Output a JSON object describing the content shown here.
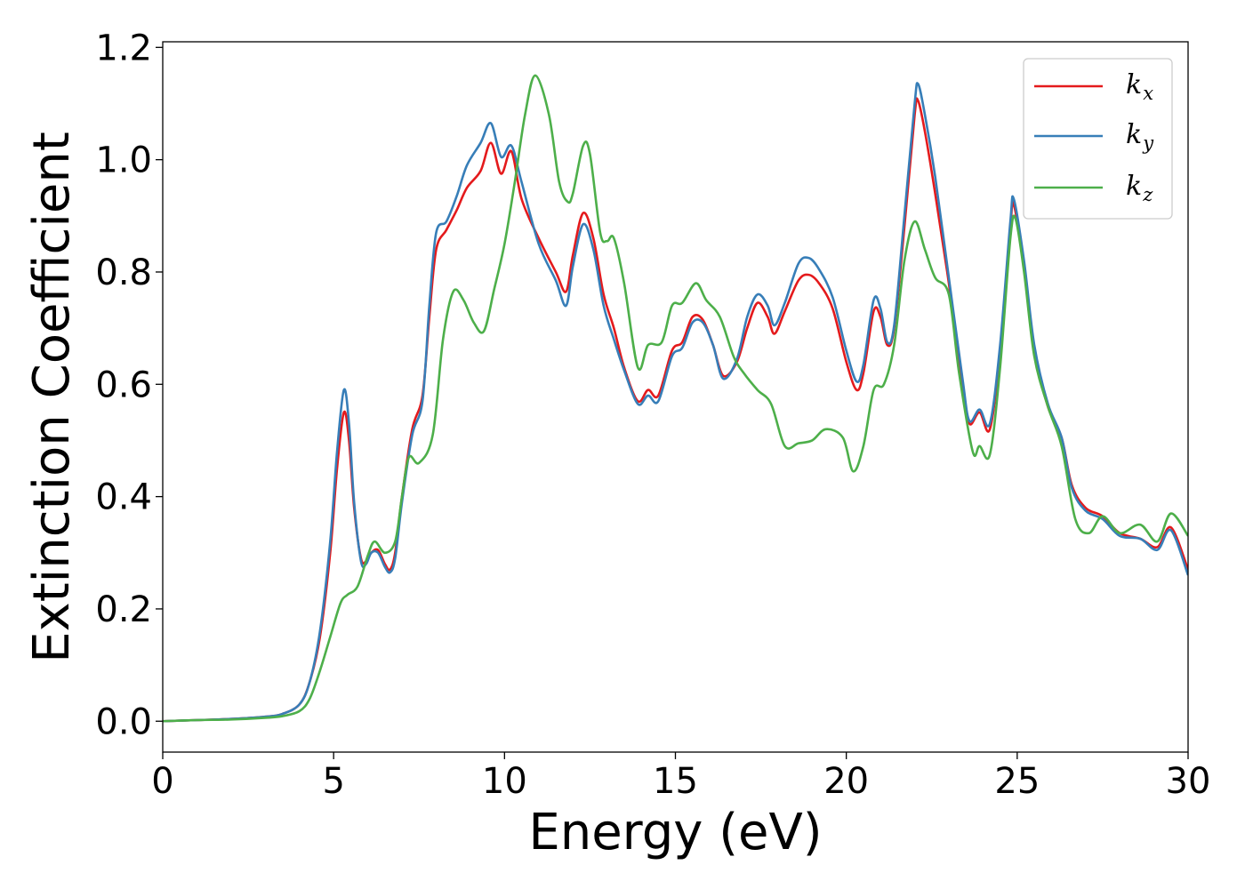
{
  "chart_data": {
    "type": "line",
    "title": "",
    "xlabel": "Energy (eV)",
    "ylabel": "Extinction Coefficient",
    "xlim": [
      0,
      30
    ],
    "ylim": [
      -0.055,
      1.21
    ],
    "xticks": [
      0,
      5,
      10,
      15,
      20,
      25,
      30
    ],
    "yticks": [
      0.0,
      0.2,
      0.4,
      0.6,
      0.8,
      1.0,
      1.2
    ],
    "xtick_labels": [
      "0",
      "5",
      "10",
      "15",
      "20",
      "25",
      "30"
    ],
    "ytick_labels": [
      "0.0",
      "0.2",
      "0.4",
      "0.6",
      "0.8",
      "1.0",
      "1.2"
    ],
    "grid": false,
    "legend_position": "top-right",
    "series": [
      {
        "name": "k_x",
        "label_main": "k",
        "label_sub": "x",
        "color": "#e41a1c",
        "points": [
          [
            0,
            0
          ],
          [
            1,
            0.002
          ],
          [
            2,
            0.004
          ],
          [
            3,
            0.008
          ],
          [
            3.5,
            0.013
          ],
          [
            4,
            0.03
          ],
          [
            4.3,
            0.07
          ],
          [
            4.6,
            0.15
          ],
          [
            4.9,
            0.3
          ],
          [
            5.1,
            0.45
          ],
          [
            5.3,
            0.55
          ],
          [
            5.45,
            0.5
          ],
          [
            5.6,
            0.38
          ],
          [
            5.8,
            0.29
          ],
          [
            5.95,
            0.285
          ],
          [
            6.1,
            0.3
          ],
          [
            6.3,
            0.305
          ],
          [
            6.5,
            0.28
          ],
          [
            6.65,
            0.27
          ],
          [
            6.8,
            0.3
          ],
          [
            7.0,
            0.4
          ],
          [
            7.3,
            0.52
          ],
          [
            7.6,
            0.58
          ],
          [
            7.8,
            0.72
          ],
          [
            8.0,
            0.84
          ],
          [
            8.3,
            0.875
          ],
          [
            8.6,
            0.91
          ],
          [
            8.9,
            0.95
          ],
          [
            9.3,
            0.98
          ],
          [
            9.6,
            1.03
          ],
          [
            9.9,
            0.975
          ],
          [
            10.2,
            1.015
          ],
          [
            10.5,
            0.93
          ],
          [
            11.0,
            0.86
          ],
          [
            11.5,
            0.8
          ],
          [
            11.8,
            0.765
          ],
          [
            12.0,
            0.83
          ],
          [
            12.3,
            0.905
          ],
          [
            12.6,
            0.86
          ],
          [
            12.9,
            0.76
          ],
          [
            13.2,
            0.7
          ],
          [
            13.5,
            0.63
          ],
          [
            13.9,
            0.57
          ],
          [
            14.2,
            0.59
          ],
          [
            14.5,
            0.58
          ],
          [
            14.9,
            0.66
          ],
          [
            15.2,
            0.675
          ],
          [
            15.5,
            0.72
          ],
          [
            15.8,
            0.715
          ],
          [
            16.1,
            0.67
          ],
          [
            16.4,
            0.615
          ],
          [
            16.8,
            0.64
          ],
          [
            17.1,
            0.7
          ],
          [
            17.4,
            0.745
          ],
          [
            17.7,
            0.72
          ],
          [
            17.9,
            0.69
          ],
          [
            18.2,
            0.73
          ],
          [
            18.6,
            0.785
          ],
          [
            18.9,
            0.795
          ],
          [
            19.2,
            0.78
          ],
          [
            19.6,
            0.735
          ],
          [
            20.0,
            0.64
          ],
          [
            20.3,
            0.59
          ],
          [
            20.5,
            0.62
          ],
          [
            20.8,
            0.73
          ],
          [
            21.0,
            0.72
          ],
          [
            21.2,
            0.67
          ],
          [
            21.4,
            0.7
          ],
          [
            21.7,
            0.88
          ],
          [
            22.0,
            1.08
          ],
          [
            22.1,
            1.105
          ],
          [
            22.3,
            1.05
          ],
          [
            22.6,
            0.94
          ],
          [
            23.0,
            0.78
          ],
          [
            23.4,
            0.6
          ],
          [
            23.6,
            0.53
          ],
          [
            23.9,
            0.55
          ],
          [
            24.2,
            0.52
          ],
          [
            24.5,
            0.66
          ],
          [
            24.8,
            0.88
          ],
          [
            24.9,
            0.92
          ],
          [
            25.2,
            0.81
          ],
          [
            25.5,
            0.66
          ],
          [
            25.9,
            0.56
          ],
          [
            26.3,
            0.505
          ],
          [
            26.6,
            0.42
          ],
          [
            27.0,
            0.38
          ],
          [
            27.5,
            0.365
          ],
          [
            28.0,
            0.335
          ],
          [
            28.6,
            0.325
          ],
          [
            29.1,
            0.31
          ],
          [
            29.5,
            0.345
          ],
          [
            30,
            0.27
          ]
        ]
      },
      {
        "name": "k_y",
        "label_main": "k",
        "label_sub": "y",
        "color": "#377eb8",
        "points": [
          [
            0,
            0
          ],
          [
            1,
            0.002
          ],
          [
            2,
            0.004
          ],
          [
            3,
            0.008
          ],
          [
            3.5,
            0.013
          ],
          [
            4,
            0.03
          ],
          [
            4.3,
            0.07
          ],
          [
            4.6,
            0.16
          ],
          [
            4.9,
            0.32
          ],
          [
            5.1,
            0.48
          ],
          [
            5.3,
            0.59
          ],
          [
            5.45,
            0.53
          ],
          [
            5.6,
            0.39
          ],
          [
            5.8,
            0.285
          ],
          [
            5.95,
            0.28
          ],
          [
            6.1,
            0.3
          ],
          [
            6.3,
            0.3
          ],
          [
            6.5,
            0.275
          ],
          [
            6.65,
            0.265
          ],
          [
            6.8,
            0.29
          ],
          [
            7.0,
            0.39
          ],
          [
            7.3,
            0.51
          ],
          [
            7.6,
            0.57
          ],
          [
            7.8,
            0.74
          ],
          [
            8.0,
            0.87
          ],
          [
            8.3,
            0.89
          ],
          [
            8.6,
            0.935
          ],
          [
            8.9,
            0.99
          ],
          [
            9.3,
            1.03
          ],
          [
            9.6,
            1.065
          ],
          [
            9.9,
            1.005
          ],
          [
            10.2,
            1.025
          ],
          [
            10.5,
            0.96
          ],
          [
            11.0,
            0.85
          ],
          [
            11.5,
            0.785
          ],
          [
            11.8,
            0.74
          ],
          [
            12.0,
            0.81
          ],
          [
            12.3,
            0.885
          ],
          [
            12.6,
            0.84
          ],
          [
            12.9,
            0.74
          ],
          [
            13.2,
            0.68
          ],
          [
            13.5,
            0.625
          ],
          [
            13.9,
            0.565
          ],
          [
            14.2,
            0.58
          ],
          [
            14.5,
            0.57
          ],
          [
            14.9,
            0.65
          ],
          [
            15.2,
            0.665
          ],
          [
            15.5,
            0.71
          ],
          [
            15.8,
            0.71
          ],
          [
            16.1,
            0.67
          ],
          [
            16.4,
            0.61
          ],
          [
            16.8,
            0.645
          ],
          [
            17.1,
            0.72
          ],
          [
            17.4,
            0.76
          ],
          [
            17.7,
            0.74
          ],
          [
            17.9,
            0.705
          ],
          [
            18.2,
            0.745
          ],
          [
            18.6,
            0.815
          ],
          [
            18.9,
            0.825
          ],
          [
            19.2,
            0.805
          ],
          [
            19.6,
            0.755
          ],
          [
            20.0,
            0.66
          ],
          [
            20.3,
            0.605
          ],
          [
            20.5,
            0.635
          ],
          [
            20.8,
            0.75
          ],
          [
            21.0,
            0.735
          ],
          [
            21.2,
            0.675
          ],
          [
            21.4,
            0.705
          ],
          [
            21.7,
            0.9
          ],
          [
            22.0,
            1.1
          ],
          [
            22.1,
            1.135
          ],
          [
            22.3,
            1.08
          ],
          [
            22.6,
            0.97
          ],
          [
            23.0,
            0.79
          ],
          [
            23.4,
            0.61
          ],
          [
            23.6,
            0.535
          ],
          [
            23.9,
            0.555
          ],
          [
            24.2,
            0.53
          ],
          [
            24.5,
            0.67
          ],
          [
            24.8,
            0.89
          ],
          [
            24.9,
            0.93
          ],
          [
            25.2,
            0.82
          ],
          [
            25.5,
            0.67
          ],
          [
            25.9,
            0.565
          ],
          [
            26.3,
            0.505
          ],
          [
            26.6,
            0.415
          ],
          [
            27.0,
            0.375
          ],
          [
            27.5,
            0.36
          ],
          [
            28.0,
            0.33
          ],
          [
            28.6,
            0.325
          ],
          [
            29.1,
            0.305
          ],
          [
            29.5,
            0.34
          ],
          [
            30,
            0.26
          ]
        ]
      },
      {
        "name": "k_z",
        "label_main": "k",
        "label_sub": "z",
        "color": "#4daf4a",
        "points": [
          [
            0,
            0
          ],
          [
            1,
            0.002
          ],
          [
            2,
            0.003
          ],
          [
            3,
            0.006
          ],
          [
            3.5,
            0.009
          ],
          [
            4,
            0.018
          ],
          [
            4.3,
            0.04
          ],
          [
            4.6,
            0.09
          ],
          [
            4.9,
            0.15
          ],
          [
            5.2,
            0.21
          ],
          [
            5.4,
            0.225
          ],
          [
            5.7,
            0.24
          ],
          [
            6.0,
            0.295
          ],
          [
            6.2,
            0.32
          ],
          [
            6.5,
            0.3
          ],
          [
            6.8,
            0.32
          ],
          [
            7.0,
            0.4
          ],
          [
            7.2,
            0.47
          ],
          [
            7.5,
            0.46
          ],
          [
            7.9,
            0.51
          ],
          [
            8.2,
            0.68
          ],
          [
            8.5,
            0.765
          ],
          [
            8.8,
            0.75
          ],
          [
            9.1,
            0.71
          ],
          [
            9.4,
            0.695
          ],
          [
            9.7,
            0.77
          ],
          [
            10.0,
            0.85
          ],
          [
            10.3,
            0.96
          ],
          [
            10.6,
            1.08
          ],
          [
            10.9,
            1.15
          ],
          [
            11.3,
            1.08
          ],
          [
            11.6,
            0.96
          ],
          [
            11.85,
            0.925
          ],
          [
            12.0,
            0.94
          ],
          [
            12.3,
            1.025
          ],
          [
            12.5,
            1.01
          ],
          [
            12.8,
            0.87
          ],
          [
            13.0,
            0.855
          ],
          [
            13.2,
            0.86
          ],
          [
            13.5,
            0.78
          ],
          [
            13.9,
            0.63
          ],
          [
            14.2,
            0.67
          ],
          [
            14.6,
            0.675
          ],
          [
            14.9,
            0.74
          ],
          [
            15.2,
            0.745
          ],
          [
            15.6,
            0.78
          ],
          [
            15.9,
            0.75
          ],
          [
            16.3,
            0.72
          ],
          [
            16.7,
            0.65
          ],
          [
            17.0,
            0.62
          ],
          [
            17.4,
            0.59
          ],
          [
            17.8,
            0.565
          ],
          [
            18.2,
            0.49
          ],
          [
            18.6,
            0.495
          ],
          [
            19.0,
            0.5
          ],
          [
            19.4,
            0.52
          ],
          [
            19.9,
            0.505
          ],
          [
            20.2,
            0.445
          ],
          [
            20.5,
            0.49
          ],
          [
            20.8,
            0.59
          ],
          [
            21.1,
            0.6
          ],
          [
            21.4,
            0.67
          ],
          [
            21.7,
            0.82
          ],
          [
            22.0,
            0.89
          ],
          [
            22.3,
            0.84
          ],
          [
            22.6,
            0.79
          ],
          [
            23.0,
            0.76
          ],
          [
            23.3,
            0.62
          ],
          [
            23.7,
            0.48
          ],
          [
            23.9,
            0.49
          ],
          [
            24.2,
            0.475
          ],
          [
            24.5,
            0.63
          ],
          [
            24.8,
            0.86
          ],
          [
            24.95,
            0.895
          ],
          [
            25.2,
            0.8
          ],
          [
            25.5,
            0.65
          ],
          [
            25.9,
            0.56
          ],
          [
            26.3,
            0.49
          ],
          [
            26.7,
            0.36
          ],
          [
            27.1,
            0.335
          ],
          [
            27.5,
            0.365
          ],
          [
            28.0,
            0.335
          ],
          [
            28.6,
            0.35
          ],
          [
            29.1,
            0.32
          ],
          [
            29.5,
            0.37
          ],
          [
            30,
            0.33
          ]
        ]
      }
    ]
  }
}
